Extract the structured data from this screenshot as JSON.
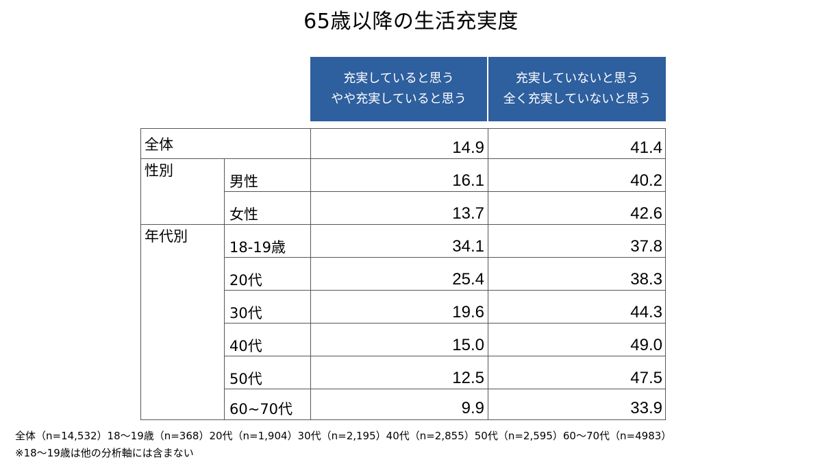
{
  "title": "65歳以降の生活充実度",
  "columns": [
    {
      "line1": "充実していると思う",
      "line2": "やや充実していると思う"
    },
    {
      "line1": "充実していないと思う",
      "line2": "全く充実していないと思う"
    }
  ],
  "groups": {
    "all": "全体",
    "gender": "性別",
    "age": "年代別"
  },
  "rows": [
    {
      "label": "全体",
      "a": "14.9",
      "b": "41.4"
    },
    {
      "label": "男性",
      "a": "16.1",
      "b": "40.2"
    },
    {
      "label": "女性",
      "a": "13.7",
      "b": "42.6"
    },
    {
      "label": "18-19歳",
      "a": "34.1",
      "b": "37.8"
    },
    {
      "label": "20代",
      "a": "25.4",
      "b": "38.3"
    },
    {
      "label": "30代",
      "a": "19.6",
      "b": "44.3"
    },
    {
      "label": "40代",
      "a": "15.0",
      "b": "49.0"
    },
    {
      "label": "50代",
      "a": "12.5",
      "b": "47.5"
    },
    {
      "label": "60~70代",
      "a": "9.9",
      "b": "33.9"
    }
  ],
  "footnotes": [
    "全体（n=14,532）18～19歳（n=368）20代（n=1,904）30代（n=2,195）40代（n=2,855）50代（n=2,595）60～70代（n=4983）",
    "※18～19歳は他の分析軸には含まない"
  ],
  "colors": {
    "header_bg": "#2e5f9e",
    "header_text": "#ffffff",
    "grid_line": "#555555"
  }
}
